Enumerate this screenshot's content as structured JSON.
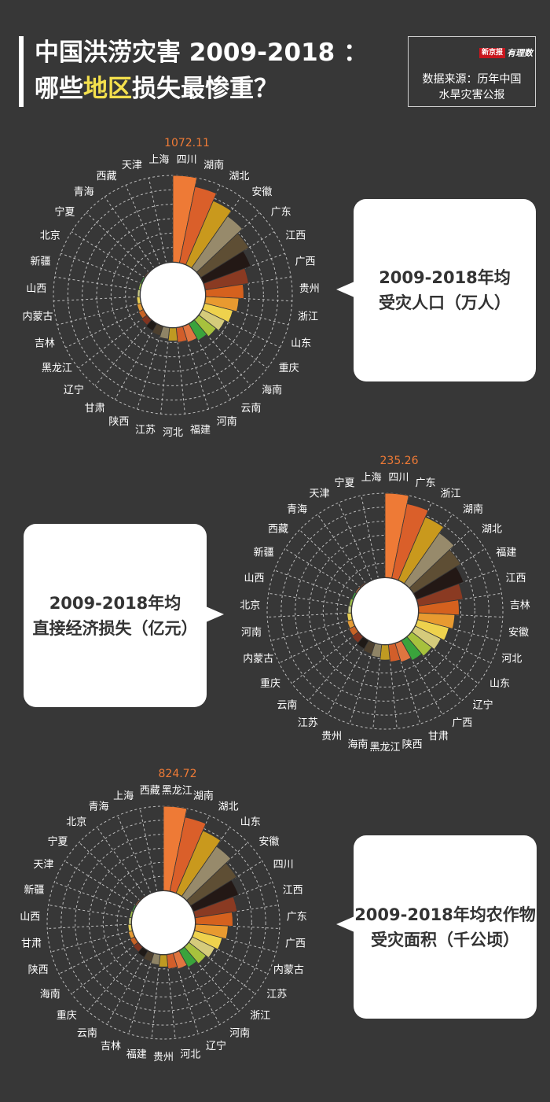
{
  "header": {
    "title_line1": "中国洪涝灾害 2009-2018 ：",
    "title_line2_pre": "哪些",
    "title_line2_hl": "地区",
    "title_line2_post": "损失最惨重？",
    "logo_red": "新京报",
    "logo_script": "有理数",
    "source_line1": "数据来源：历年中国",
    "source_line2": "水旱灾害公报"
  },
  "palette": [
    "#ee7a36",
    "#da5f2a",
    "#c9991d",
    "#978a6b",
    "#5e4e34",
    "#231815",
    "#8a3a22",
    "#d5611e",
    "#e89a30",
    "#eed24d",
    "#d5cb7b",
    "#a7c13d",
    "#3aa33c",
    "#e07540",
    "#d25e2a",
    "#bf9a22",
    "#8f8466",
    "#4c3f2e",
    "#1f1a17",
    "#813420",
    "#c86326",
    "#e49b35",
    "#e9d153",
    "#c9cb8a",
    "#9ec049",
    "#46a344",
    "#db7a3d",
    "#cc5d2a",
    "#ba9223",
    "#8a8068",
    "#3e3429"
  ],
  "chart_data": [
    {
      "type": "polar-bar",
      "title": "",
      "caption_line1": "2009-2018年均",
      "caption_line2": "受灾人口（万人）",
      "max_label": "1072.11",
      "max": 1072.11,
      "categories": [
        "四川",
        "湖南",
        "湖北",
        "安徽",
        "广东",
        "江西",
        "广西",
        "贵州",
        "浙江",
        "山东",
        "重庆",
        "海南",
        "云南",
        "河南",
        "福建",
        "河北",
        "江苏",
        "陕西",
        "甘肃",
        "辽宁",
        "黑龙江",
        "吉林",
        "内蒙古",
        "山西",
        "新疆",
        "北京",
        "宁夏",
        "青海",
        "西藏",
        "天津",
        "上海"
      ],
      "values": [
        1072.11,
        960,
        860,
        780,
        700,
        620,
        540,
        470,
        410,
        360,
        310,
        270,
        235,
        205,
        180,
        160,
        140,
        120,
        100,
        82,
        66,
        52,
        40,
        30,
        22,
        16,
        10,
        6,
        4,
        2,
        1
      ]
    },
    {
      "type": "polar-bar",
      "title": "",
      "caption_line1": "2009-2018年均",
      "caption_line2": "直接经济损失（亿元）",
      "max_label": "235.26",
      "max": 235.26,
      "categories": [
        "四川",
        "广东",
        "浙江",
        "湖南",
        "湖北",
        "福建",
        "江西",
        "吉林",
        "安徽",
        "河北",
        "山东",
        "辽宁",
        "广西",
        "甘肃",
        "陕西",
        "黑龙江",
        "海南",
        "贵州",
        "江苏",
        "云南",
        "重庆",
        "内蒙古",
        "河南",
        "北京",
        "山西",
        "新疆",
        "西藏",
        "青海",
        "天津",
        "宁夏",
        "上海"
      ],
      "values": [
        235.26,
        212,
        192,
        172,
        155,
        140,
        126,
        113,
        101,
        90,
        80,
        71,
        63,
        55,
        48,
        42,
        36,
        31,
        26,
        22,
        18,
        15,
        12,
        9,
        7,
        5,
        3.5,
        2.5,
        1.5,
        1,
        0.5
      ]
    },
    {
      "type": "polar-bar",
      "title": "",
      "caption_line1": "2009-2018年均农作物",
      "caption_line2": "受灾面积（千公顷）",
      "max_label": "824.72",
      "max": 824.72,
      "categories": [
        "黑龙江",
        "湖南",
        "湖北",
        "山东",
        "安徽",
        "四川",
        "江西",
        "广东",
        "广西",
        "内蒙古",
        "江苏",
        "浙江",
        "河南",
        "辽宁",
        "河北",
        "贵州",
        "福建",
        "吉林",
        "云南",
        "重庆",
        "海南",
        "陕西",
        "甘肃",
        "山西",
        "新疆",
        "天津",
        "宁夏",
        "北京",
        "青海",
        "上海",
        "西藏"
      ],
      "values": [
        824.72,
        740,
        665,
        595,
        530,
        470,
        415,
        365,
        320,
        280,
        245,
        213,
        185,
        160,
        138,
        118,
        101,
        86,
        72,
        60,
        49,
        40,
        32,
        25,
        19,
        14,
        10,
        7,
        4,
        2,
        1
      ]
    }
  ]
}
